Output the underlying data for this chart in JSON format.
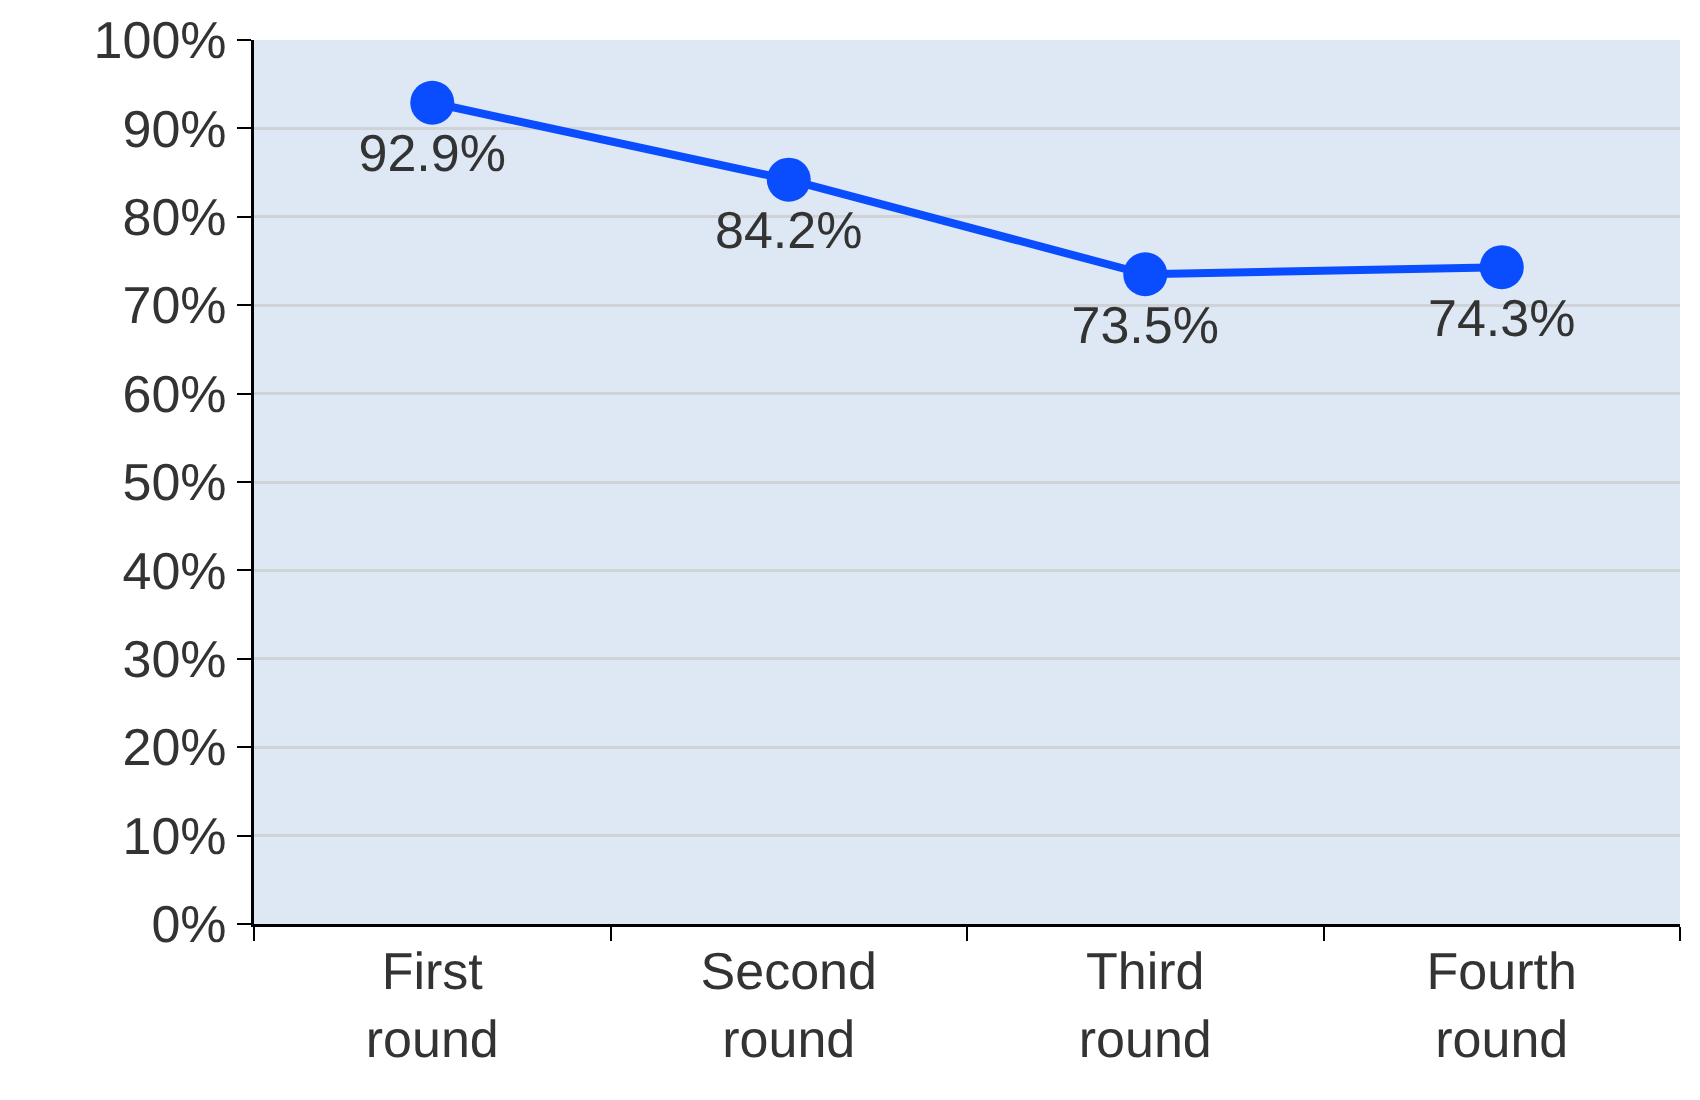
{
  "chart_data": {
    "type": "line",
    "categories": [
      "First round",
      "Second round",
      "Third round",
      "Fourth round"
    ],
    "series": [
      {
        "color": "#0a4dff",
        "values": [
          92.9,
          84.2,
          73.5,
          74.3
        ],
        "value_labels": [
          "92.9%",
          "84.2%",
          "73.5%",
          "74.3%"
        ]
      }
    ],
    "ylim": [
      0,
      100
    ],
    "yticks": [
      {
        "value": 0,
        "label": "0%"
      },
      {
        "value": 10,
        "label": "10%"
      },
      {
        "value": 20,
        "label": "20%"
      },
      {
        "value": 30,
        "label": "30%"
      },
      {
        "value": 40,
        "label": "40%"
      },
      {
        "value": 50,
        "label": "50%"
      },
      {
        "value": 60,
        "label": "60%"
      },
      {
        "value": 70,
        "label": "70%"
      },
      {
        "value": 80,
        "label": "80%"
      },
      {
        "value": 90,
        "label": "90%"
      },
      {
        "value": 100,
        "label": "100%"
      }
    ],
    "grid": "y",
    "marker": "circle",
    "line_style": "solid"
  }
}
